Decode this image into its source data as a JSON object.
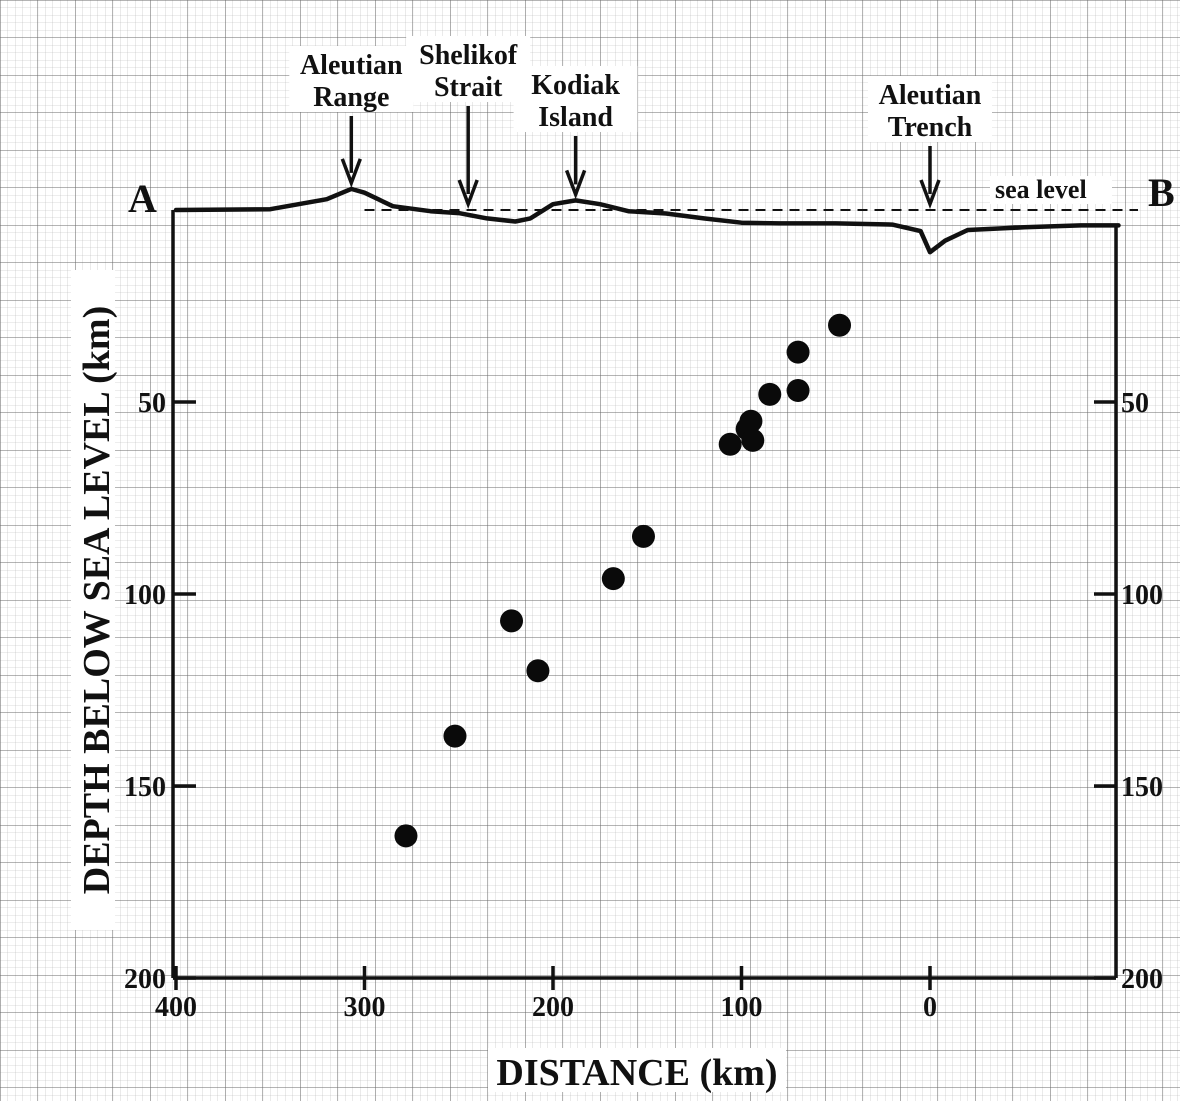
{
  "chart_data": {
    "type": "scatter",
    "title": "",
    "xlabel": "DISTANCE (km)",
    "ylabel": "DEPTH BELOW SEA LEVEL (km)",
    "x_reversed": true,
    "xlim": [
      400,
      -100
    ],
    "ylim": [
      0,
      200
    ],
    "y_reversed": true,
    "grid": true,
    "x_ticks": [
      400,
      300,
      200,
      100,
      0
    ],
    "x_tick_labels": [
      "400",
      "300",
      "200",
      "100",
      "0"
    ],
    "y_ticks_left": [
      50,
      100,
      150,
      200
    ],
    "y_tick_labels_left": [
      "50",
      "100",
      "150",
      "200"
    ],
    "y_ticks_right": [
      50,
      100,
      150,
      200
    ],
    "y_tick_labels_right": [
      "50",
      "100",
      "150",
      "200"
    ],
    "endpoint_labels": {
      "left": "A",
      "right": "B"
    },
    "sea_level_label": "sea level",
    "features": [
      {
        "line1": "Aleutian",
        "line2": "Range",
        "x": 307
      },
      {
        "line1": "Shelikof",
        "line2": "Strait",
        "x": 245
      },
      {
        "line1": "Kodiak",
        "line2": "Island",
        "x": 188
      },
      {
        "line1": "Aleutian",
        "line2": "Trench",
        "x": 0
      }
    ],
    "profile": [
      [
        400,
        0
      ],
      [
        350,
        -0.2
      ],
      [
        335,
        -1.5
      ],
      [
        320,
        -2.8
      ],
      [
        307,
        -5.5
      ],
      [
        300,
        -4.5
      ],
      [
        285,
        -1
      ],
      [
        265,
        0.3
      ],
      [
        250,
        0.8
      ],
      [
        235,
        2.2
      ],
      [
        220,
        3
      ],
      [
        212,
        2.2
      ],
      [
        200,
        -1.5
      ],
      [
        188,
        -2.5
      ],
      [
        175,
        -1.5
      ],
      [
        160,
        0.3
      ],
      [
        140,
        0.9
      ],
      [
        120,
        2.2
      ],
      [
        100,
        3.3
      ],
      [
        80,
        3.5
      ],
      [
        50,
        3.5
      ],
      [
        20,
        3.8
      ],
      [
        5,
        5.5
      ],
      [
        0,
        11
      ],
      [
        -8,
        8
      ],
      [
        -20,
        5.2
      ],
      [
        -50,
        4.5
      ],
      [
        -80,
        4
      ],
      [
        -100,
        4
      ]
    ],
    "series": [
      {
        "points": [
          [
            48,
            30
          ],
          [
            70,
            37
          ],
          [
            70,
            47
          ],
          [
            85,
            48
          ],
          [
            95,
            55
          ],
          [
            97,
            57
          ],
          [
            94,
            60
          ],
          [
            106,
            61
          ],
          [
            152,
            85
          ],
          [
            168,
            96
          ],
          [
            222,
            107
          ],
          [
            208,
            120
          ],
          [
            252,
            137
          ],
          [
            278,
            163
          ]
        ]
      }
    ]
  }
}
